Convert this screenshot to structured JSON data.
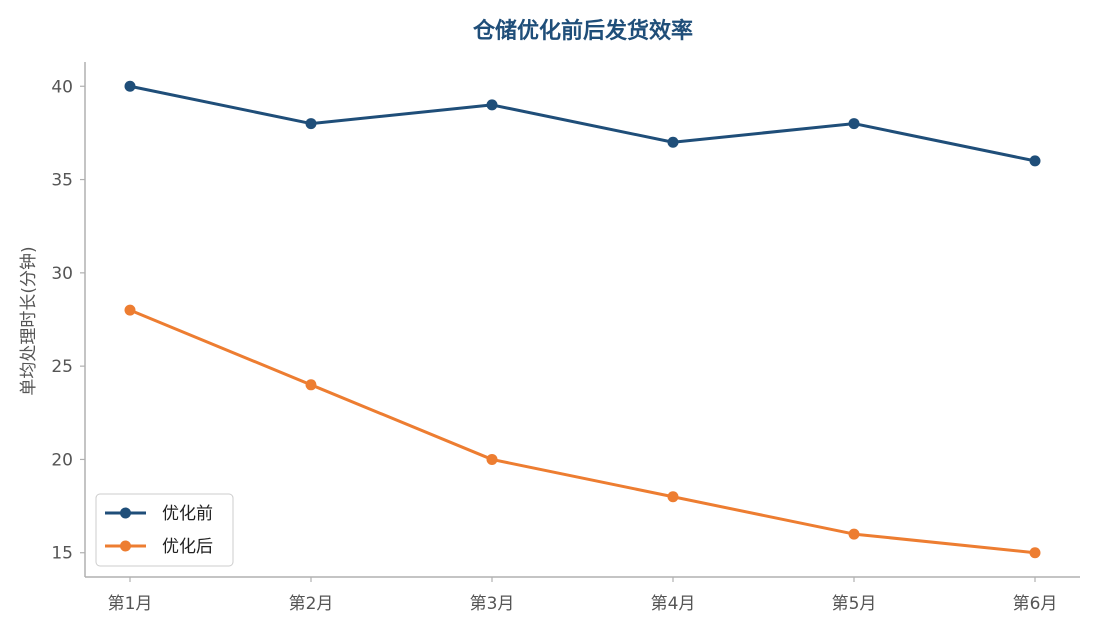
{
  "chart_data": {
    "type": "line",
    "title": "仓储优化前后发货效率",
    "xlabel": "",
    "ylabel": "单均处理时长(分钟)",
    "categories": [
      "第1月",
      "第2月",
      "第3月",
      "第4月",
      "第5月",
      "第6月"
    ],
    "series": [
      {
        "name": "优化前",
        "values": [
          40,
          38,
          39,
          37,
          38,
          36
        ],
        "color": "#1f4e79",
        "marker": "circle"
      },
      {
        "name": "优化后",
        "values": [
          28,
          24,
          20,
          18,
          16,
          15
        ],
        "color": "#ed7d31",
        "marker": "circle"
      }
    ],
    "ylim": [
      13.7,
      41.3
    ],
    "yticks": [
      15,
      20,
      25,
      30,
      35,
      40
    ],
    "grid": false,
    "legend_position": "lower-left",
    "title_color": "#1f4e79",
    "axis_color": "#b0b0b0"
  }
}
